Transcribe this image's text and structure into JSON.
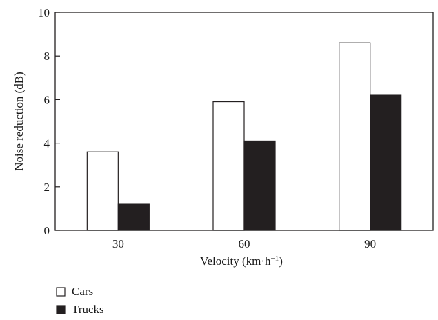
{
  "chart_data": {
    "type": "bar",
    "categories": [
      "30",
      "60",
      "90"
    ],
    "series": [
      {
        "name": "Cars",
        "values": [
          3.6,
          5.9,
          8.6
        ],
        "color": "#ffffff"
      },
      {
        "name": "Trucks",
        "values": [
          1.2,
          4.1,
          6.2
        ],
        "color": "#231f20"
      }
    ],
    "xlabel": "Velocity (km·h",
    "xlabel_superscript": "−1",
    "xlabel_suffix": ")",
    "ylabel": "Noise reduction (dB)",
    "ylim": [
      0,
      10
    ],
    "yticks": [
      "0",
      "2",
      "4",
      "6",
      "8",
      "10"
    ],
    "grid": false,
    "legend_position": "bottom-left"
  }
}
